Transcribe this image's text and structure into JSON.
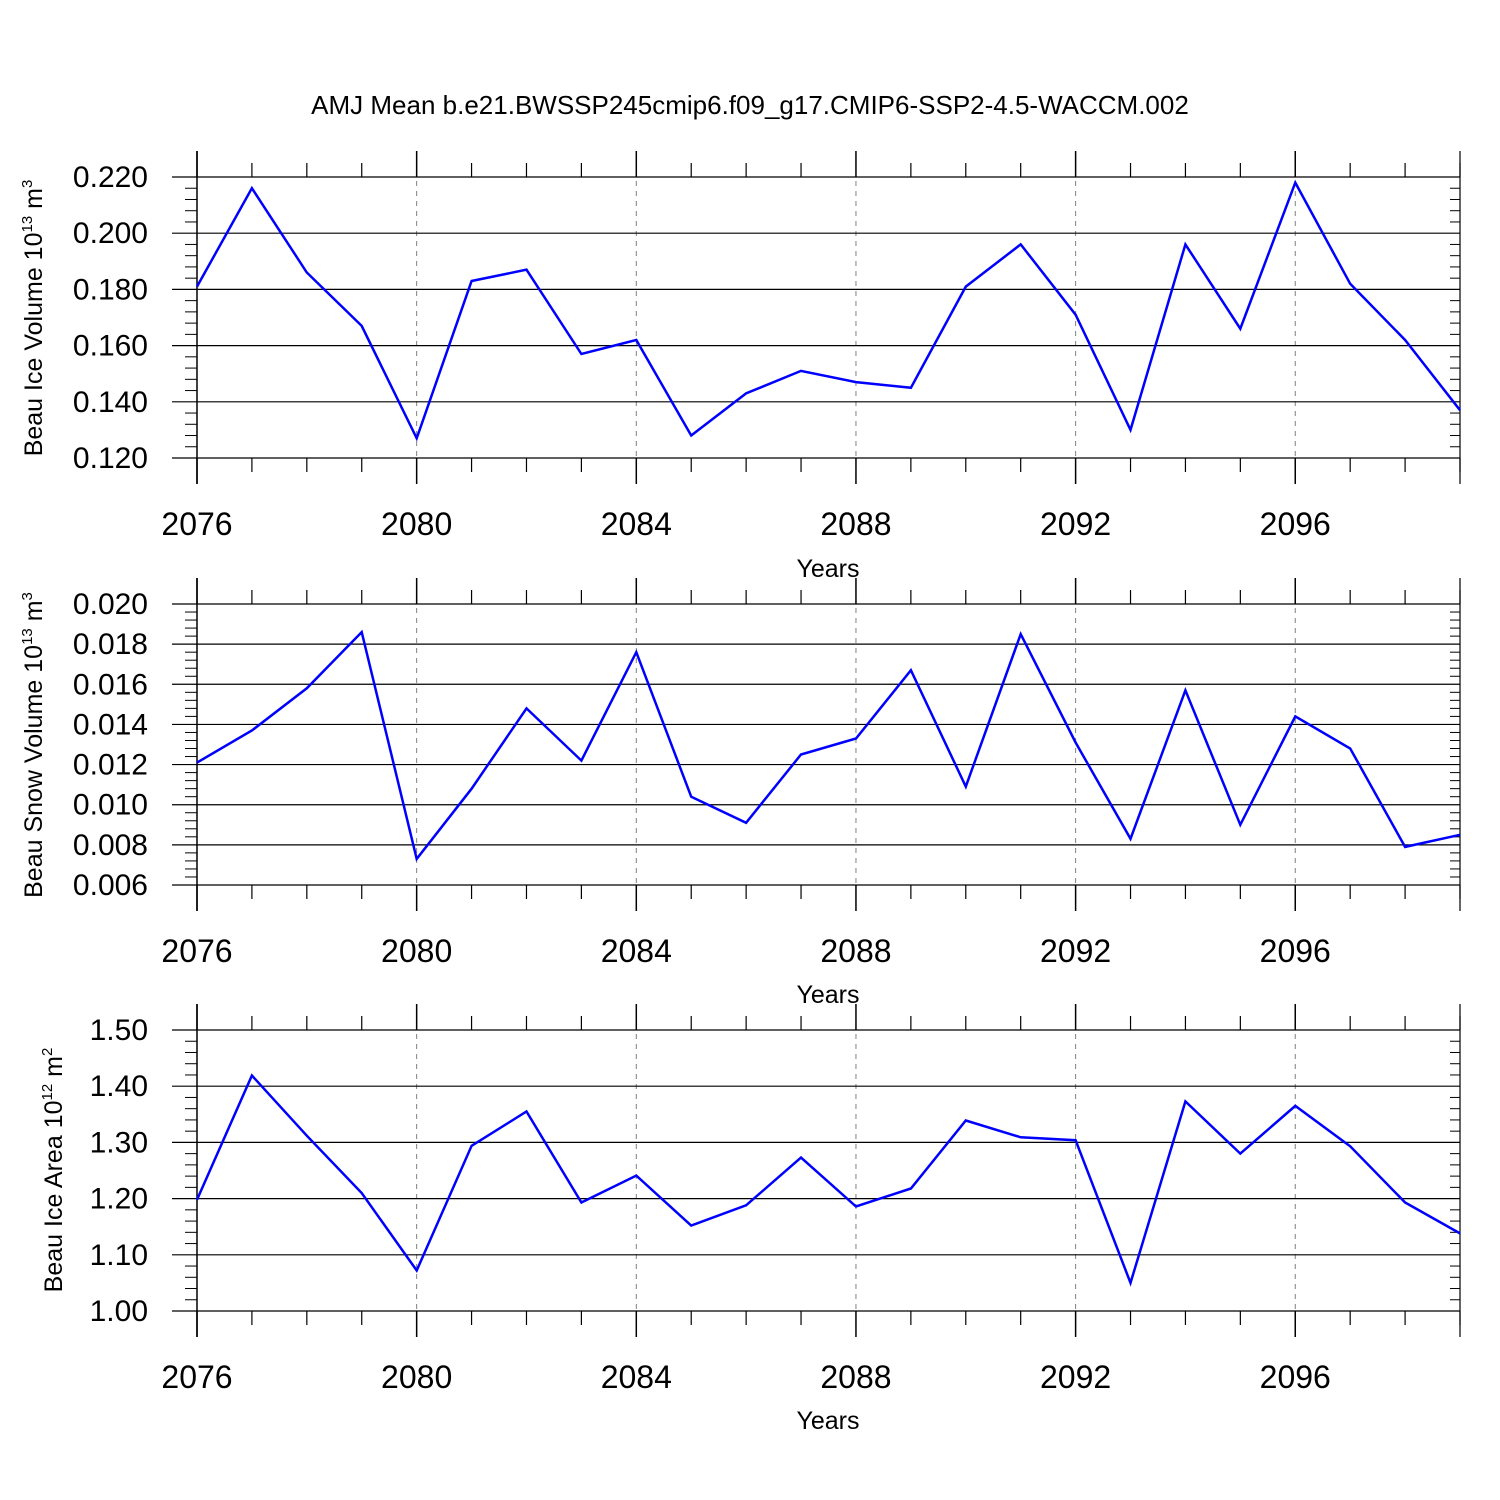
{
  "title": "AMJ Mean b.e21.BWSSP245cmip6.f09_g17.CMIP6-SSP2-4.5-WACCM.002",
  "colors": {
    "line": "#0000ff",
    "axis": "#000000",
    "grid": "#808080"
  },
  "chart_data": [
    {
      "type": "line",
      "xlabel": "Years",
      "ylabel": {
        "base": "Beau Ice Volume 10",
        "sup1": "13",
        "mid": " m",
        "sup2": "3"
      },
      "xlim": [
        2076,
        2099
      ],
      "ylim": [
        0.12,
        0.22
      ],
      "xticks": [
        "2076",
        "2080",
        "2084",
        "2088",
        "2092",
        "2096"
      ],
      "yticks": [
        "0.120",
        "0.140",
        "0.160",
        "0.180",
        "0.200",
        "0.220"
      ],
      "grid": "vertical-dashed",
      "x": [
        2076,
        2077,
        2078,
        2079,
        2080,
        2081,
        2082,
        2083,
        2084,
        2085,
        2086,
        2087,
        2088,
        2089,
        2090,
        2091,
        2092,
        2093,
        2094,
        2095,
        2096,
        2097,
        2098,
        2099
      ],
      "values": [
        0.181,
        0.216,
        0.186,
        0.167,
        0.127,
        0.183,
        0.187,
        0.157,
        0.162,
        0.128,
        0.143,
        0.151,
        0.147,
        0.145,
        0.181,
        0.196,
        0.171,
        0.13,
        0.196,
        0.166,
        0.218,
        0.182,
        0.162,
        0.137
      ]
    },
    {
      "type": "line",
      "xlabel": "Years",
      "ylabel": {
        "base": "Beau Snow Volume 10",
        "sup1": "13",
        "mid": " m",
        "sup2": "3"
      },
      "xlim": [
        2076,
        2099
      ],
      "ylim": [
        0.006,
        0.02
      ],
      "xticks": [
        "2076",
        "2080",
        "2084",
        "2088",
        "2092",
        "2096"
      ],
      "yticks": [
        "0.006",
        "0.008",
        "0.010",
        "0.012",
        "0.014",
        "0.016",
        "0.018",
        "0.020"
      ],
      "grid": "vertical-dashed",
      "x": [
        2076,
        2077,
        2078,
        2079,
        2080,
        2081,
        2082,
        2083,
        2084,
        2085,
        2086,
        2087,
        2088,
        2089,
        2090,
        2091,
        2092,
        2093,
        2094,
        2095,
        2096,
        2097,
        2098,
        2099
      ],
      "values": [
        0.0121,
        0.0137,
        0.0158,
        0.0186,
        0.0073,
        0.0108,
        0.0148,
        0.0122,
        0.0176,
        0.0104,
        0.0091,
        0.0125,
        0.0133,
        0.0167,
        0.0109,
        0.0185,
        0.0131,
        0.0083,
        0.0157,
        0.009,
        0.0144,
        0.0128,
        0.0079,
        0.0085
      ]
    },
    {
      "type": "line",
      "xlabel": "Years",
      "ylabel": {
        "base": "Beau Ice Area 10",
        "sup1": "12",
        "mid": " m",
        "sup2": "2"
      },
      "xlim": [
        2076,
        2099
      ],
      "ylim": [
        1.0,
        1.5
      ],
      "xticks": [
        "2076",
        "2080",
        "2084",
        "2088",
        "2092",
        "2096"
      ],
      "yticks": [
        "1.00",
        "1.10",
        "1.20",
        "1.30",
        "1.40",
        "1.50"
      ],
      "grid": "vertical-dashed",
      "x": [
        2076,
        2077,
        2078,
        2079,
        2080,
        2081,
        2082,
        2083,
        2084,
        2085,
        2086,
        2087,
        2088,
        2089,
        2090,
        2091,
        2092,
        2093,
        2094,
        2095,
        2096,
        2097,
        2098,
        2099
      ],
      "values": [
        1.198,
        1.419,
        1.312,
        1.21,
        1.072,
        1.294,
        1.355,
        1.193,
        1.241,
        1.152,
        1.188,
        1.273,
        1.186,
        1.218,
        1.339,
        1.309,
        1.304,
        1.05,
        1.373,
        1.28,
        1.365,
        1.293,
        1.193,
        1.138
      ]
    }
  ]
}
